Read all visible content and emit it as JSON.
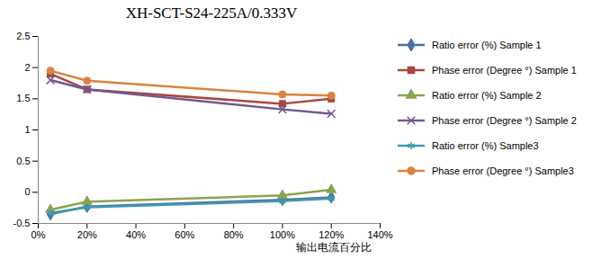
{
  "chart_data": {
    "type": "line",
    "title": "XH-SCT-S24-225A/0.333V",
    "x_label": "输出电流百分比",
    "x": [
      5,
      20,
      100,
      120
    ],
    "series": [
      {
        "name": "Ratio error (%) Sample 1",
        "color": "#4572A7",
        "marker": "diamond",
        "values": [
          -0.35,
          -0.23,
          -0.12,
          -0.08
        ]
      },
      {
        "name": "Phase error (Degree °) Sample 1",
        "color": "#AA4643",
        "marker": "square",
        "values": [
          1.9,
          1.65,
          1.42,
          1.5
        ]
      },
      {
        "name": "Ratio error (%) Sample 2",
        "color": "#89A54E",
        "marker": "triangle",
        "values": [
          -0.28,
          -0.15,
          -0.05,
          0.04
        ]
      },
      {
        "name": "Phase error (Degree °) Sample 2",
        "color": "#71588F",
        "marker": "times",
        "values": [
          1.8,
          1.65,
          1.33,
          1.26
        ]
      },
      {
        "name": "Ratio error (%) Sample3",
        "color": "#4198AF",
        "marker": "asterisk",
        "values": [
          -0.33,
          -0.24,
          -0.14,
          -0.1
        ]
      },
      {
        "name": "Phase error (Degree °) Sample3",
        "color": "#DB843D",
        "marker": "circle",
        "values": [
          1.95,
          1.79,
          1.57,
          1.55
        ]
      }
    ],
    "xlim": [
      0,
      140
    ],
    "xticks": [
      {
        "value": 0,
        "label": "0%"
      },
      {
        "value": 20,
        "label": "20%"
      },
      {
        "value": 40,
        "label": "40%"
      },
      {
        "value": 60,
        "label": "60%"
      },
      {
        "value": 80,
        "label": "80%"
      },
      {
        "value": 100,
        "label": "100%"
      },
      {
        "value": 120,
        "label": "120%"
      },
      {
        "value": 140,
        "label": "140%"
      }
    ],
    "ylim": [
      -0.5,
      2.5
    ],
    "yticks": [
      -0.5,
      0,
      0.5,
      1,
      1.5,
      2,
      2.5
    ],
    "grid": false,
    "legend": "right"
  }
}
